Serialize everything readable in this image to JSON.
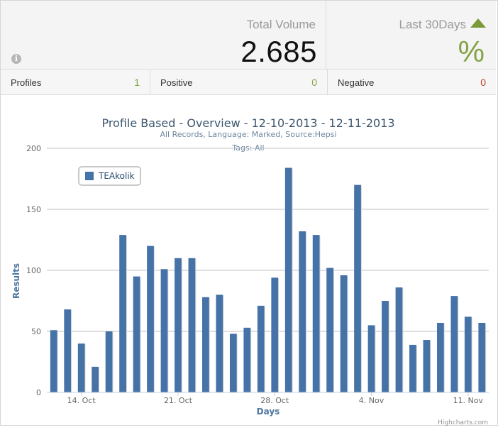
{
  "summary": {
    "total_volume_label": "Total Volume",
    "total_volume_value": "2.685",
    "info_icon": "info-icon",
    "trend_label": "Last 30Days",
    "trend_icon": "triangle-up-icon",
    "trend_value": "%"
  },
  "counts": {
    "profiles_label": "Profiles",
    "profiles_value": "1",
    "positive_label": "Positive",
    "positive_value": "0",
    "negative_label": "Negative",
    "negative_value": "0"
  },
  "colors": {
    "bar": "#4572a7",
    "positive": "#82a343",
    "negative": "#c0392b",
    "title": "#3e576f",
    "subtitle": "#6d869f",
    "axis_text": "#4d759e"
  },
  "chart_data": {
    "type": "bar",
    "title": "Profile Based - Overview - 12-10-2013 - 12-11-2013",
    "subtitle_line1": "All Records, Language: Marked, Source:Hepsi",
    "subtitle_line2": "Tags: All",
    "xlabel": "Days",
    "ylabel": "Results",
    "ylim": [
      0,
      200
    ],
    "yticks": [
      0,
      50,
      100,
      150,
      200
    ],
    "grid": true,
    "legend_position": "top-left",
    "x_start": "2013-10-12",
    "x_end": "2013-11-12",
    "x_tick_labels": [
      {
        "label": "14. Oct",
        "date": "2013-10-14"
      },
      {
        "label": "21. Oct",
        "date": "2013-10-21"
      },
      {
        "label": "28. Oct",
        "date": "2013-10-28"
      },
      {
        "label": "4. Nov",
        "date": "2013-11-04"
      },
      {
        "label": "11. Nov",
        "date": "2013-11-11"
      }
    ],
    "series": [
      {
        "name": "TEAkolik",
        "points": [
          {
            "date": "2013-10-12",
            "value": 51
          },
          {
            "date": "2013-10-13",
            "value": 68
          },
          {
            "date": "2013-10-14",
            "value": 40
          },
          {
            "date": "2013-10-15",
            "value": 21
          },
          {
            "date": "2013-10-16",
            "value": 50
          },
          {
            "date": "2013-10-17",
            "value": 129
          },
          {
            "date": "2013-10-18",
            "value": 95
          },
          {
            "date": "2013-10-19",
            "value": 120
          },
          {
            "date": "2013-10-20",
            "value": 101
          },
          {
            "date": "2013-10-21",
            "value": 110
          },
          {
            "date": "2013-10-22",
            "value": 110
          },
          {
            "date": "2013-10-23",
            "value": 78
          },
          {
            "date": "2013-10-24",
            "value": 80
          },
          {
            "date": "2013-10-25",
            "value": 48
          },
          {
            "date": "2013-10-26",
            "value": 53
          },
          {
            "date": "2013-10-27",
            "value": 71
          },
          {
            "date": "2013-10-28",
            "value": 94
          },
          {
            "date": "2013-10-29",
            "value": 184
          },
          {
            "date": "2013-10-30",
            "value": 132
          },
          {
            "date": "2013-10-31",
            "value": 129
          },
          {
            "date": "2013-11-01",
            "value": 102
          },
          {
            "date": "2013-11-02",
            "value": 96
          },
          {
            "date": "2013-11-03",
            "value": 170
          },
          {
            "date": "2013-11-04",
            "value": 55
          },
          {
            "date": "2013-11-05",
            "value": 75
          },
          {
            "date": "2013-11-06",
            "value": 86
          },
          {
            "date": "2013-11-07",
            "value": 39
          },
          {
            "date": "2013-11-08",
            "value": 43
          },
          {
            "date": "2013-11-09",
            "value": 57
          },
          {
            "date": "2013-11-10",
            "value": 79
          },
          {
            "date": "2013-11-11",
            "value": 62
          },
          {
            "date": "2013-11-12",
            "value": 57
          }
        ]
      }
    ],
    "credits": "Highcharts.com"
  }
}
